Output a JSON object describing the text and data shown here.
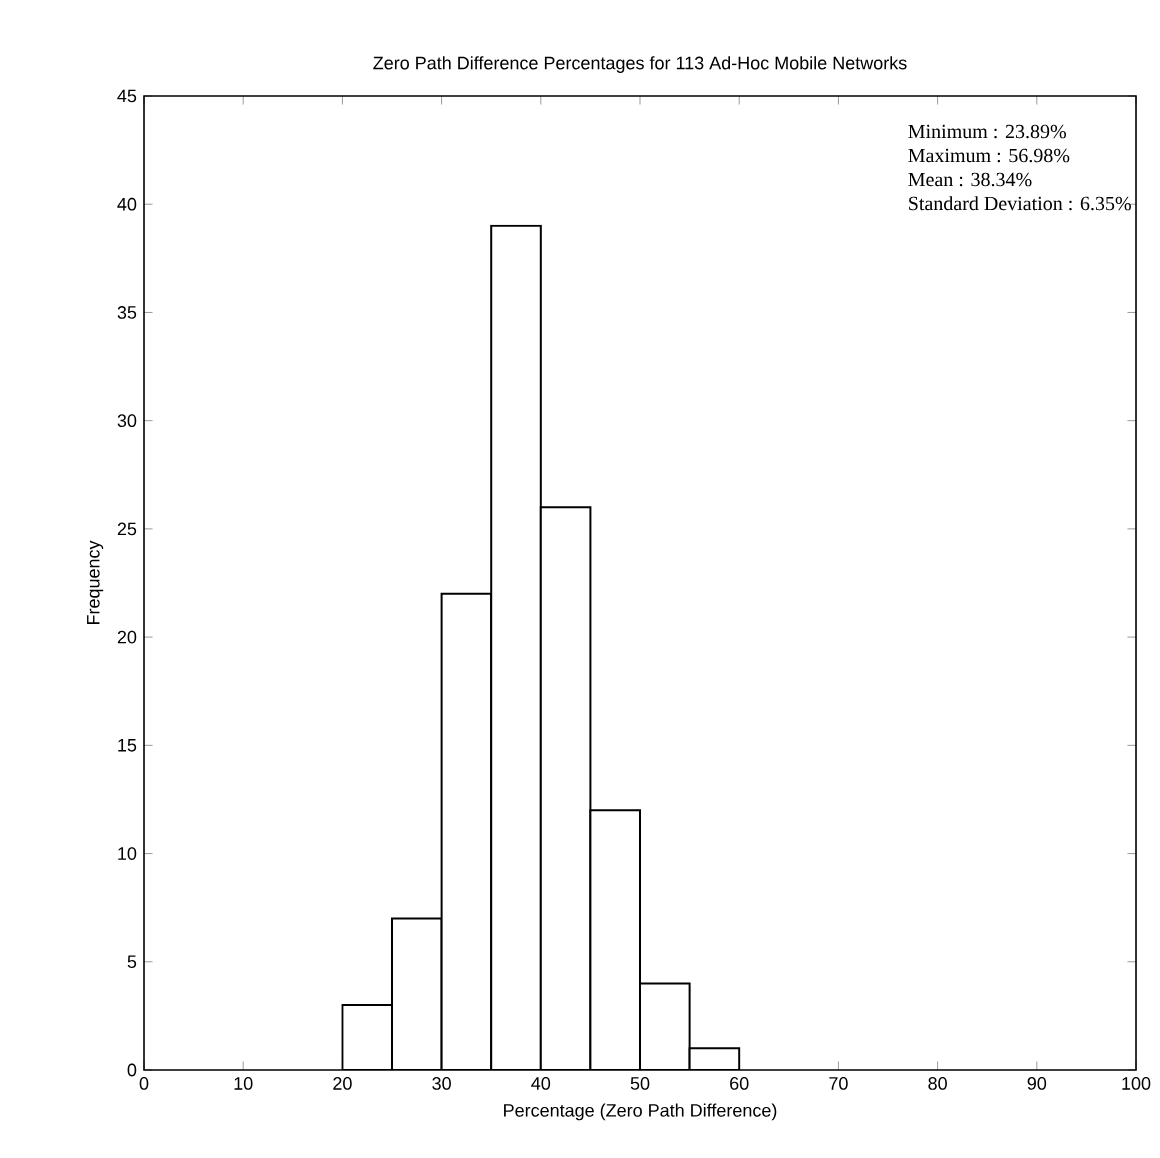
{
  "chart_data": {
    "type": "histogram",
    "title": "Zero Path Difference Percentages for 113 Ad-Hoc Mobile Networks",
    "xlabel": "Percentage (Zero Path Difference)",
    "ylabel": "Frequency",
    "bins": [
      20,
      25,
      30,
      35,
      40,
      45,
      50,
      55,
      60
    ],
    "values": [
      3,
      7,
      22,
      39,
      26,
      12,
      4,
      1
    ],
    "color": "#ffffff",
    "xlim": [
      0,
      100
    ],
    "ylim": [
      0,
      45
    ],
    "xticks": [
      0,
      10,
      20,
      30,
      40,
      50,
      60,
      70,
      80,
      90,
      100
    ],
    "yticks": [
      0,
      5,
      10,
      15,
      20,
      25,
      30,
      35,
      40,
      45
    ],
    "annotations": [
      "Minimum : 23.89%",
      "Maximum : 56.98%",
      "Mean : 38.34%",
      "Standard Deviation : 6.35%"
    ],
    "grid": false
  }
}
